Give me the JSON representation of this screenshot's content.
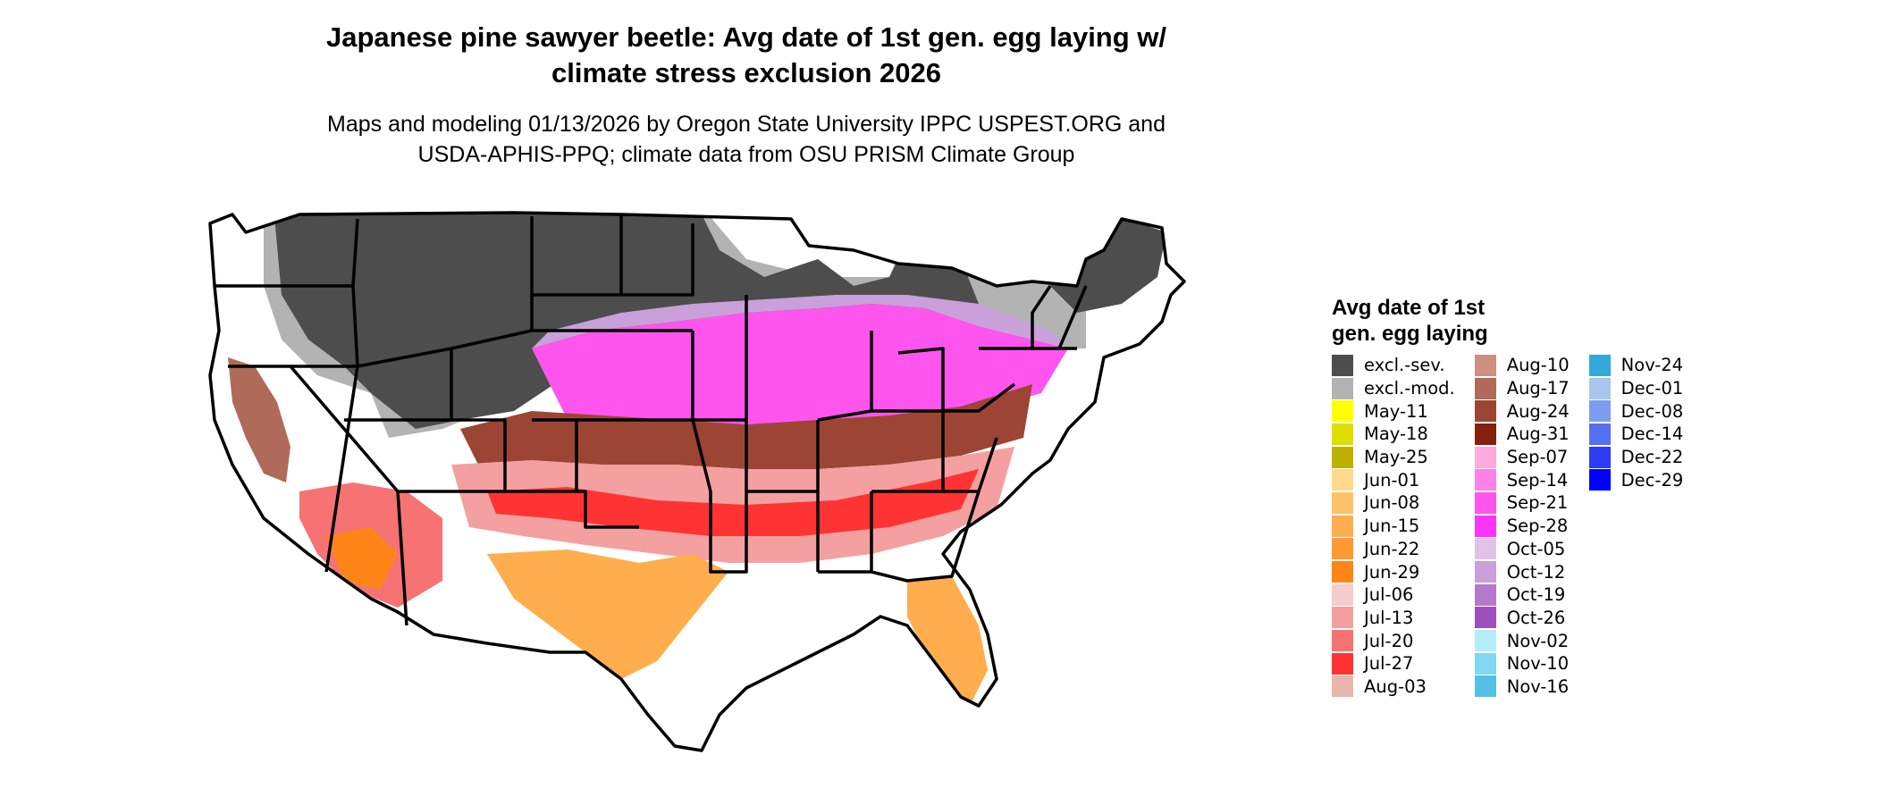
{
  "title_line1": "Japanese pine sawyer beetle: Avg date of 1st gen. egg laying w/",
  "title_line2": "climate stress exclusion 2026",
  "subtitle_line1": "Maps and modeling 01/13/2026 by Oregon State University IPPC USPEST.ORG and",
  "subtitle_line2": "USDA-APHIS-PPQ; climate data from OSU PRISM Climate Group",
  "legend": {
    "title_line1": "Avg date of 1st",
    "title_line2": "gen. egg laying",
    "columns": [
      [
        {
          "label": "excl.-sev.",
          "color": "#4d4d4d"
        },
        {
          "label": "excl.-mod.",
          "color": "#b3b3b3"
        },
        {
          "label": "May-11",
          "color": "#ffff00"
        },
        {
          "label": "May-18",
          "color": "#dede00"
        },
        {
          "label": "May-25",
          "color": "#bfb000"
        },
        {
          "label": "Jun-01",
          "color": "#ffd98c"
        },
        {
          "label": "Jun-08",
          "color": "#ffc266"
        },
        {
          "label": "Jun-15",
          "color": "#ffad4d"
        },
        {
          "label": "Jun-22",
          "color": "#ff9933"
        },
        {
          "label": "Jun-29",
          "color": "#ff8519"
        },
        {
          "label": "Jul-06",
          "color": "#f7cccc"
        },
        {
          "label": "Jul-13",
          "color": "#f5a0a0"
        },
        {
          "label": "Jul-20",
          "color": "#f77272"
        },
        {
          "label": "Jul-27",
          "color": "#ff3333"
        },
        {
          "label": "Aug-03",
          "color": "#e8b7ab"
        }
      ],
      [
        {
          "label": "Aug-10",
          "color": "#cc8f80"
        },
        {
          "label": "Aug-17",
          "color": "#b06a5a"
        },
        {
          "label": "Aug-24",
          "color": "#9c4535"
        },
        {
          "label": "Aug-31",
          "color": "#85200f"
        },
        {
          "label": "Sep-07",
          "color": "#ffaadd"
        },
        {
          "label": "Sep-14",
          "color": "#ff80e6"
        },
        {
          "label": "Sep-21",
          "color": "#ff55ee"
        },
        {
          "label": "Sep-28",
          "color": "#ff33ff"
        },
        {
          "label": "Oct-05",
          "color": "#e0c2e6"
        },
        {
          "label": "Oct-12",
          "color": "#c9a0d9"
        },
        {
          "label": "Oct-19",
          "color": "#b37acc"
        },
        {
          "label": "Oct-26",
          "color": "#9e4fbf"
        },
        {
          "label": "Nov-02",
          "color": "#b3ecfa"
        },
        {
          "label": "Nov-10",
          "color": "#80d8f2"
        },
        {
          "label": "Nov-16",
          "color": "#55c0e6"
        }
      ],
      [
        {
          "label": "Nov-24",
          "color": "#33a8db"
        },
        {
          "label": "Dec-01",
          "color": "#a8c6f0"
        },
        {
          "label": "Dec-08",
          "color": "#7d9ef0"
        },
        {
          "label": "Dec-14",
          "color": "#5570f0"
        },
        {
          "label": "Dec-22",
          "color": "#2d3cf5"
        },
        {
          "label": "Dec-29",
          "color": "#0000ff"
        }
      ]
    ]
  }
}
